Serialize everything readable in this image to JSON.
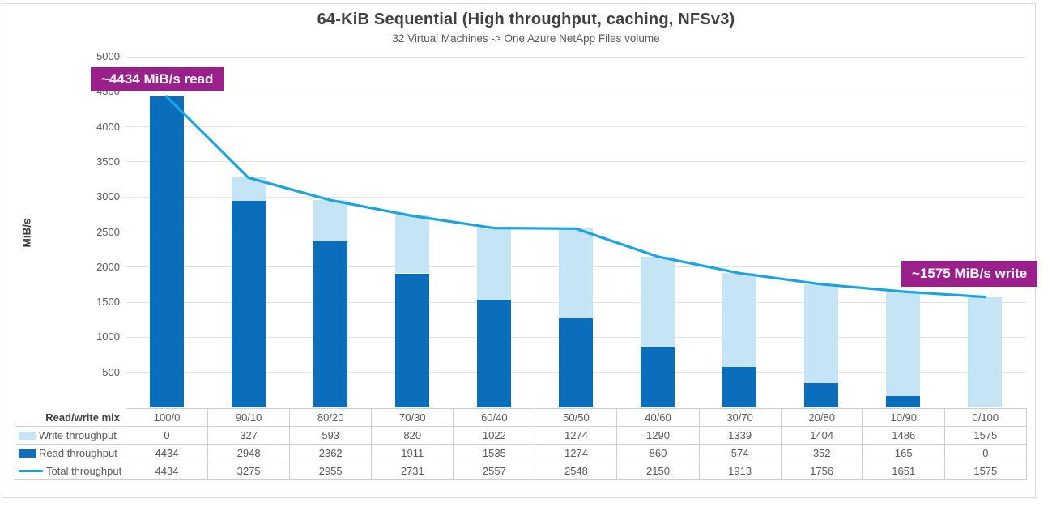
{
  "title": "64-KiB Sequential (High throughput, caching, NFSv3)",
  "subtitle": "32 Virtual Machines -> One Azure NetApp Files volume",
  "annotations": {
    "read_peak": "~4434 MiB/s read",
    "write_peak": "~1575 MiB/s write"
  },
  "y_axis": {
    "title": "MiB/s",
    "ticks": [
      5000,
      4500,
      4000,
      3500,
      3000,
      2500,
      2000,
      1500,
      1000,
      500
    ],
    "min": 0,
    "max": 5000
  },
  "table": {
    "corner_label": "Read/write mix"
  },
  "colors": {
    "read_bar": "#0a6ebd",
    "write_bar": "#c5e4f5",
    "total_line": "#1ca3e2",
    "annotation_bg": "#9b208b",
    "gridline": "#e2e2e2",
    "title_text": "#404040",
    "secondary_text": "#595959"
  },
  "chart_data": {
    "type": "bar",
    "subtype": "stacked-bars-with-line-overlay",
    "title": "64-KiB Sequential (High throughput, caching, NFSv3)",
    "subtitle": "32 Virtual Machines -> One Azure NetApp Files volume",
    "xlabel": "Read/write mix",
    "ylabel": "MiB/s",
    "ylim": [
      0,
      5000
    ],
    "grid": "horizontal",
    "legend_position": "table-left",
    "categories": [
      "100/0",
      "90/10",
      "80/20",
      "70/30",
      "60/40",
      "50/50",
      "40/60",
      "30/70",
      "20/80",
      "10/90",
      "0/100"
    ],
    "series": [
      {
        "name": "Write throughput",
        "type": "bar-stack-top",
        "swatch": "rect",
        "color": "#c5e4f5",
        "values": [
          0,
          327,
          593,
          820,
          1022,
          1274,
          1290,
          1339,
          1404,
          1486,
          1575
        ]
      },
      {
        "name": "Read throughput",
        "type": "bar-stack-bottom",
        "swatch": "rect",
        "color": "#0a6ebd",
        "values": [
          4434,
          2948,
          2362,
          1911,
          1535,
          1274,
          860,
          574,
          352,
          165,
          0
        ]
      },
      {
        "name": "Total throughput",
        "type": "line",
        "swatch": "line",
        "color": "#1ca3e2",
        "values": [
          4434,
          3275,
          2955,
          2731,
          2557,
          2548,
          2150,
          1913,
          1756,
          1651,
          1575
        ]
      }
    ]
  }
}
